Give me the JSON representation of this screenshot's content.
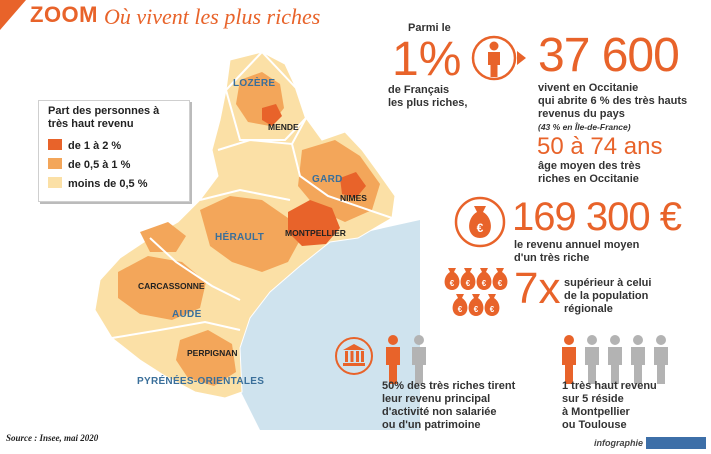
{
  "header": {
    "zoom_label": "ZOOM",
    "title": "Où vivent les plus riches"
  },
  "legend": {
    "title_line1": "Part des personnes à",
    "title_line2": "très haut revenu",
    "items": [
      {
        "label": "de 1 à 2 %",
        "color": "#e8632a"
      },
      {
        "label": "de 0,5 à 1 %",
        "color": "#f3a65a"
      },
      {
        "label": "moins de 0,5 %",
        "color": "#fbe0a6"
      }
    ]
  },
  "map": {
    "departments": [
      "LOZÈRE",
      "GARD",
      "HÉRAULT",
      "AUDE",
      "PYRÉNÉES-ORIENTALES"
    ],
    "cities": [
      "MENDE",
      "NIMES",
      "MONTPELLIER",
      "CARCASSONNE",
      "PERPIGNAN"
    ],
    "sea_color": "#cfe3ee"
  },
  "stats": {
    "intro_line1": "Parmi  le",
    "percent": "1%",
    "percent_line1": "de Français",
    "percent_line2": "les plus riches,",
    "count": "37 600",
    "count_line1": "vivent en Occitanie",
    "count_line2": "qui abrite 6 % des très hauts",
    "count_line3": "revenus du pays",
    "count_note": "(43 % en Île-de-France)",
    "age": "50 à 74 ans",
    "age_line1": "âge moyen des très",
    "age_line2": "riches en Occitanie",
    "income": "169 300 €",
    "income_line1": "le revenu annuel moyen",
    "income_line2": "d'un très riche",
    "multiplier": "7x",
    "multiplier_line1": "supérieur à celui",
    "multiplier_line2": "de la population",
    "multiplier_line3": "régionale",
    "bag_symbol": "€",
    "activity_line1": "50% des très riches tirent",
    "activity_line2": "leur revenu principal",
    "activity_line3": "d'activité non salariée",
    "activity_line4": "ou d'un patrimoine",
    "residence_line1": "1 très haut revenu",
    "residence_line2": "sur 5 réside",
    "residence_line3": "à Montpellier",
    "residence_line4": "ou Toulouse"
  },
  "footer": {
    "source": "Source : Insee, mai 2020",
    "credit": "infographie"
  },
  "colors": {
    "accent": "#e8632a",
    "person_grey": "#b3b3b3"
  }
}
